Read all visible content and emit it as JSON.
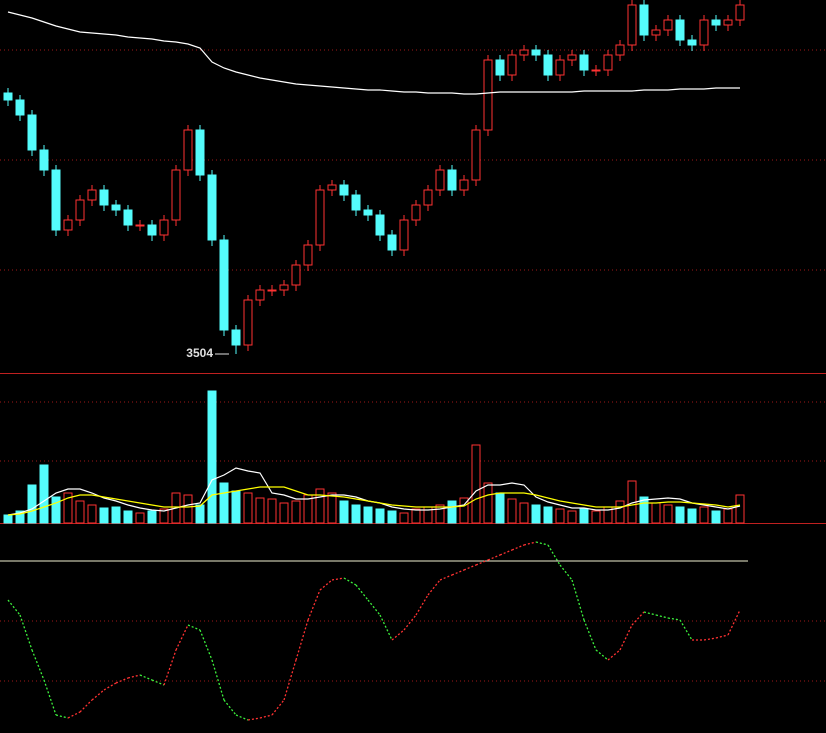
{
  "chart_data": [
    {
      "type": "candlestick",
      "open": [
        3765,
        3758,
        3743,
        3708,
        3688,
        3628,
        3638,
        3658,
        3668,
        3653,
        3648,
        3633,
        3633,
        3623,
        3638,
        3688,
        3728,
        3683,
        3618,
        3528,
        3513,
        3558,
        3568,
        3568,
        3573,
        3593,
        3613,
        3668,
        3673,
        3663,
        3648,
        3643,
        3623,
        3608,
        3638,
        3653,
        3668,
        3688,
        3668,
        3678,
        3728,
        3798,
        3783,
        3803,
        3808,
        3803,
        3783,
        3798,
        3803,
        3788,
        3788,
        3803,
        3813,
        3853,
        3823,
        3828,
        3838,
        3818,
        3813,
        3838,
        3833,
        3838
      ],
      "high": [
        3770,
        3763,
        3748,
        3713,
        3693,
        3643,
        3663,
        3673,
        3673,
        3658,
        3653,
        3638,
        3638,
        3643,
        3693,
        3733,
        3733,
        3688,
        3623,
        3533,
        3563,
        3573,
        3573,
        3578,
        3598,
        3618,
        3673,
        3678,
        3678,
        3668,
        3653,
        3648,
        3628,
        3643,
        3658,
        3673,
        3693,
        3693,
        3683,
        3733,
        3803,
        3803,
        3808,
        3813,
        3813,
        3808,
        3803,
        3808,
        3808,
        3793,
        3808,
        3818,
        3858,
        3858,
        3833,
        3843,
        3843,
        3823,
        3843,
        3843,
        3843,
        3858
      ],
      "low": [
        3752,
        3737,
        3702,
        3682,
        3622,
        3622,
        3632,
        3652,
        3647,
        3642,
        3627,
        3627,
        3617,
        3617,
        3632,
        3682,
        3677,
        3612,
        3522,
        3504,
        3507,
        3552,
        3562,
        3562,
        3567,
        3587,
        3607,
        3662,
        3657,
        3642,
        3637,
        3617,
        3602,
        3602,
        3632,
        3647,
        3662,
        3662,
        3662,
        3672,
        3722,
        3777,
        3777,
        3797,
        3797,
        3777,
        3777,
        3792,
        3782,
        3782,
        3782,
        3797,
        3807,
        3817,
        3817,
        3822,
        3812,
        3807,
        3807,
        3827,
        3827,
        3832
      ],
      "close": [
        3758,
        3743,
        3708,
        3688,
        3628,
        3638,
        3658,
        3668,
        3653,
        3648,
        3633,
        3633,
        3623,
        3638,
        3688,
        3728,
        3683,
        3618,
        3528,
        3513,
        3558,
        3568,
        3568,
        3573,
        3593,
        3613,
        3668,
        3673,
        3663,
        3648,
        3643,
        3623,
        3608,
        3638,
        3653,
        3668,
        3688,
        3668,
        3678,
        3728,
        3798,
        3783,
        3803,
        3808,
        3803,
        3783,
        3798,
        3803,
        3788,
        3788,
        3803,
        3813,
        3853,
        3823,
        3828,
        3838,
        3818,
        3813,
        3838,
        3833,
        3838,
        3853
      ],
      "up_color": "#ff3232",
      "down_color": "#54fcfc",
      "ma": {
        "color": "#ffffff",
        "values": [
          3846,
          3843,
          3840,
          3836,
          3832,
          3829,
          3826,
          3825,
          3824,
          3823,
          3821,
          3820,
          3819,
          3817,
          3816,
          3814,
          3810,
          3796,
          3790,
          3786,
          3783,
          3780,
          3778,
          3776,
          3774,
          3773,
          3772,
          3771,
          3770,
          3769,
          3768,
          3768,
          3767,
          3766,
          3766,
          3765,
          3765,
          3765,
          3764,
          3764,
          3765,
          3766,
          3766,
          3766,
          3766,
          3766,
          3766,
          3766,
          3767,
          3767,
          3767,
          3767,
          3767,
          3768,
          3768,
          3768,
          3769,
          3769,
          3769,
          3770,
          3770,
          3770
        ]
      },
      "annotation": 3504,
      "ylim": [
        3485,
        3858
      ],
      "gridlines": [
        3808,
        3698,
        3588
      ],
      "grid_color": "#a01818"
    },
    {
      "type": "bar",
      "values": [
        8,
        12,
        38,
        58,
        26,
        30,
        22,
        18,
        15,
        16,
        12,
        10,
        12,
        14,
        30,
        28,
        18,
        132,
        40,
        32,
        30,
        25,
        24,
        20,
        22,
        28,
        34,
        30,
        22,
        18,
        16,
        14,
        12,
        10,
        14,
        16,
        18,
        22,
        25,
        78,
        40,
        30,
        24,
        20,
        18,
        16,
        14,
        12,
        14,
        12,
        16,
        22,
        42,
        26,
        20,
        18,
        16,
        14,
        16,
        12,
        14,
        28
      ],
      "up_color": "#ff3232",
      "down_color": "#54fcfc",
      "series": [
        {
          "color": "#ffffff",
          "values": [
            8,
            10,
            14,
            22,
            30,
            34,
            34,
            30,
            25,
            22,
            18,
            15,
            13,
            12,
            15,
            18,
            20,
            43,
            48,
            55,
            52,
            50,
            30,
            28,
            24,
            24,
            26,
            28,
            28,
            26,
            22,
            20,
            16,
            14,
            13,
            13,
            14,
            16,
            18,
            32,
            38,
            38,
            40,
            38,
            26,
            21,
            18,
            15,
            15,
            13,
            13,
            15,
            20,
            23,
            24,
            25,
            24,
            20,
            18,
            16,
            14,
            17
          ]
        },
        {
          "color": "#ffff00",
          "values": [
            8,
            9,
            12,
            16,
            20,
            25,
            28,
            28,
            26,
            24,
            22,
            20,
            18,
            16,
            16,
            16,
            17,
            28,
            30,
            32,
            34,
            36,
            36,
            36,
            32,
            28,
            28,
            27,
            26,
            24,
            22,
            20,
            18,
            17,
            16,
            16,
            16,
            16,
            17,
            24,
            28,
            30,
            30,
            30,
            28,
            25,
            22,
            20,
            18,
            16,
            16,
            16,
            18,
            20,
            20,
            21,
            21,
            20,
            19,
            18,
            16,
            18
          ]
        }
      ],
      "ylim": [
        0,
        150
      ],
      "gridlines": [
        121,
        62
      ],
      "grid_color": "#a01818"
    },
    {
      "type": "line",
      "values": [
        -39,
        -54,
        -89,
        -119,
        -154,
        -157,
        -151,
        -139,
        -129,
        -122,
        -117,
        -114,
        -119,
        -124,
        -89,
        -64,
        -69,
        -99,
        -139,
        -154,
        -159,
        -157,
        -154,
        -139,
        -99,
        -59,
        -29,
        -19,
        -17,
        -24,
        -39,
        -54,
        -79,
        -69,
        -54,
        -34,
        -19,
        -14,
        -9,
        -4,
        1,
        6,
        11,
        16,
        19,
        16,
        -4,
        -19,
        -59,
        -89,
        -99,
        -89,
        -64,
        -51,
        -54,
        -57,
        -59,
        -79,
        -79,
        -77,
        -74,
        -49
      ],
      "up_color": "#ff3232",
      "down_color": "#3cf03c",
      "ylim": [
        -172,
        38
      ],
      "zero_line": 0,
      "zero_color": "#f0f0d0",
      "gridlines": [
        -60,
        -120
      ],
      "grid_color": "#a01818"
    }
  ]
}
